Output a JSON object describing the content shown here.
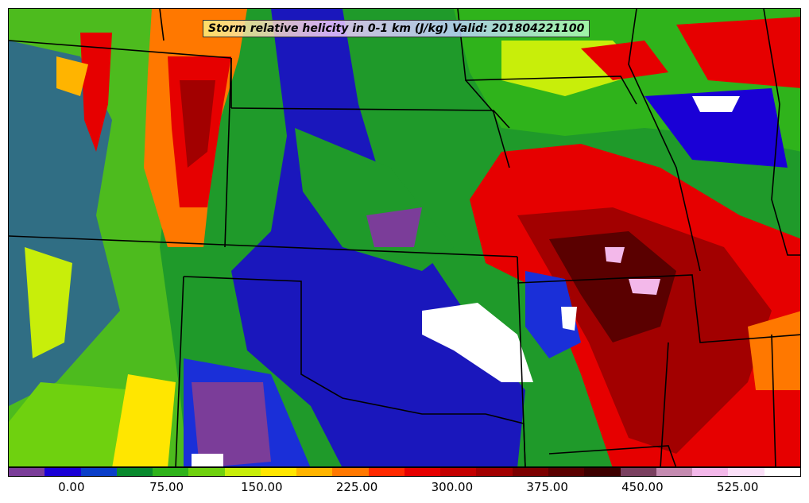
{
  "title": "Storm relative helicity in 0-1 km (J/kg) Valid: 201804221100",
  "colorbar": {
    "colors": [
      "#7b3d99",
      "#1a00d6",
      "#0b3fc9",
      "#098a2e",
      "#2fb31b",
      "#6fd10f",
      "#c8ee0a",
      "#ffe600",
      "#ffb400",
      "#ff7800",
      "#ff2a00",
      "#e60000",
      "#c40000",
      "#a20000",
      "#7c0000",
      "#5a0000",
      "#3d0000",
      "#7a4060",
      "#c48bb0",
      "#f3b8ea",
      "#fbe0f8",
      "#ffffff"
    ],
    "tick_labels": [
      "0.00",
      "75.00",
      "150.00",
      "225.00",
      "300.00",
      "375.00",
      "450.00",
      "525.00"
    ],
    "tick_values": [
      0,
      75,
      150,
      225,
      300,
      375,
      450,
      525
    ],
    "range": [
      -50,
      575
    ]
  },
  "map": {
    "quantity": "Storm relative helicity 0-1 km",
    "units": "J/kg",
    "valid_time": "201804221100"
  }
}
